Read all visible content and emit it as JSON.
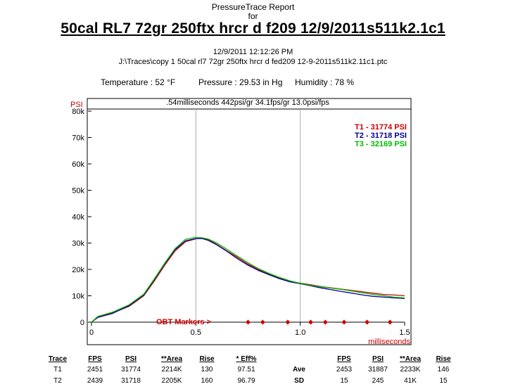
{
  "header": {
    "line1": "PressureTrace Report",
    "line2": "for",
    "title": "50cal RL7 72gr 250ftx hrcr d f209 12/9/2011s511k2.1c1",
    "datetime": "12/9/2011 12:12:26 PM",
    "filepath": "J:\\Traces\\copy 1 50cal rl7 72gr 250ftx hrcr d fed209 12-9-2011s511k2.11c1.ptc"
  },
  "conditions": {
    "temperature": "Temperature : 52 °F",
    "pressure": "Pressure : 29.53 in Hg",
    "humidity": "Humidity : 78 %"
  },
  "chart_data": {
    "type": "line",
    "summary": ".54milliseconds   442psi/gr   34.1fps/gr   13.0psi/fps",
    "ylabel": "PSI",
    "xlabel": "milliseconds",
    "xlim": [
      0,
      1.5
    ],
    "ylim": [
      0,
      80000
    ],
    "x_ticks": [
      "0",
      "0.5",
      "1.0",
      "1.5"
    ],
    "y_ticks": [
      "0",
      "10k",
      "20k",
      "30k",
      "40k",
      "50k",
      "60k",
      "70k",
      "80k"
    ],
    "y_tick_values": [
      0,
      10000,
      20000,
      30000,
      40000,
      50000,
      60000,
      70000,
      80000
    ],
    "x_tick_values": [
      0,
      0.5,
      1.0,
      1.5
    ],
    "grid": "vertical lines at 0.5 and 1.0",
    "markers_label": "OBT Markers >",
    "markers_x": [
      0.75,
      0.82,
      0.94,
      1.05,
      1.12,
      1.21,
      1.32,
      1.43
    ],
    "series": [
      {
        "name": "T1 -  31774 PSI",
        "color": "#cc0000",
        "x": [
          0,
          0.03,
          0.1,
          0.18,
          0.25,
          0.3,
          0.35,
          0.4,
          0.45,
          0.5,
          0.53,
          0.56,
          0.6,
          0.65,
          0.7,
          0.75,
          0.8,
          0.85,
          0.9,
          0.95,
          1.0,
          1.05,
          1.1,
          1.15,
          1.2,
          1.25,
          1.3,
          1.35,
          1.4,
          1.45,
          1.5
        ],
        "y": [
          0,
          2000,
          3500,
          6000,
          10000,
          15500,
          21500,
          27000,
          30500,
          31600,
          31774,
          31300,
          29500,
          27000,
          24500,
          22000,
          20000,
          18200,
          16800,
          15500,
          14800,
          14200,
          13500,
          13000,
          12500,
          12000,
          11500,
          11000,
          10500,
          10300,
          10000
        ]
      },
      {
        "name": "T2 -  31718 PSI",
        "color": "#000099",
        "x": [
          0,
          0.03,
          0.1,
          0.18,
          0.25,
          0.3,
          0.35,
          0.4,
          0.45,
          0.5,
          0.53,
          0.56,
          0.6,
          0.65,
          0.7,
          0.75,
          0.8,
          0.85,
          0.9,
          0.95,
          1.0,
          1.05,
          1.1,
          1.15,
          1.2,
          1.25,
          1.3,
          1.35,
          1.4,
          1.45,
          1.5
        ],
        "y": [
          0,
          1800,
          3300,
          6300,
          10300,
          16000,
          22000,
          27500,
          30800,
          31700,
          31718,
          31000,
          29300,
          26800,
          24000,
          21600,
          19600,
          18000,
          16500,
          15300,
          14600,
          13800,
          13000,
          12300,
          11600,
          11000,
          10300,
          9800,
          9500,
          9200,
          9000
        ]
      },
      {
        "name": "T3 -  32169 PSI",
        "color": "#00bb00",
        "x": [
          0,
          0.03,
          0.1,
          0.18,
          0.25,
          0.3,
          0.35,
          0.4,
          0.45,
          0.5,
          0.53,
          0.56,
          0.6,
          0.65,
          0.7,
          0.75,
          0.8,
          0.85,
          0.9,
          0.95,
          1.0,
          1.05,
          1.1,
          1.15,
          1.2,
          1.25,
          1.3,
          1.35,
          1.4,
          1.45,
          1.5
        ],
        "y": [
          0,
          2200,
          3800,
          6600,
          10600,
          16300,
          22300,
          27900,
          31400,
          32169,
          32000,
          31500,
          30000,
          27600,
          25000,
          22500,
          20300,
          18500,
          17000,
          15700,
          14700,
          14000,
          13400,
          12900,
          12400,
          11800,
          11100,
          10500,
          10000,
          9500,
          9200
        ]
      }
    ]
  },
  "results": {
    "headers": [
      "Trace",
      "FPS",
      "PSI",
      "**Area",
      "Rise",
      "* Eff%"
    ],
    "rows": [
      [
        "T1",
        "2451",
        "31774",
        "2214K",
        "130",
        "97.51"
      ],
      [
        "T2",
        "2439",
        "31718",
        "2205K",
        "160",
        "96.79"
      ]
    ],
    "stats_headers": [
      "FPS",
      "PSI",
      "**Area",
      "Rise"
    ],
    "stats_rows": [
      {
        "label": "Ave",
        "values": [
          "2453",
          "31887",
          "2233K",
          "146"
        ]
      },
      {
        "label": "SD",
        "values": [
          "15",
          "245",
          "41K",
          "15"
        ]
      }
    ]
  }
}
